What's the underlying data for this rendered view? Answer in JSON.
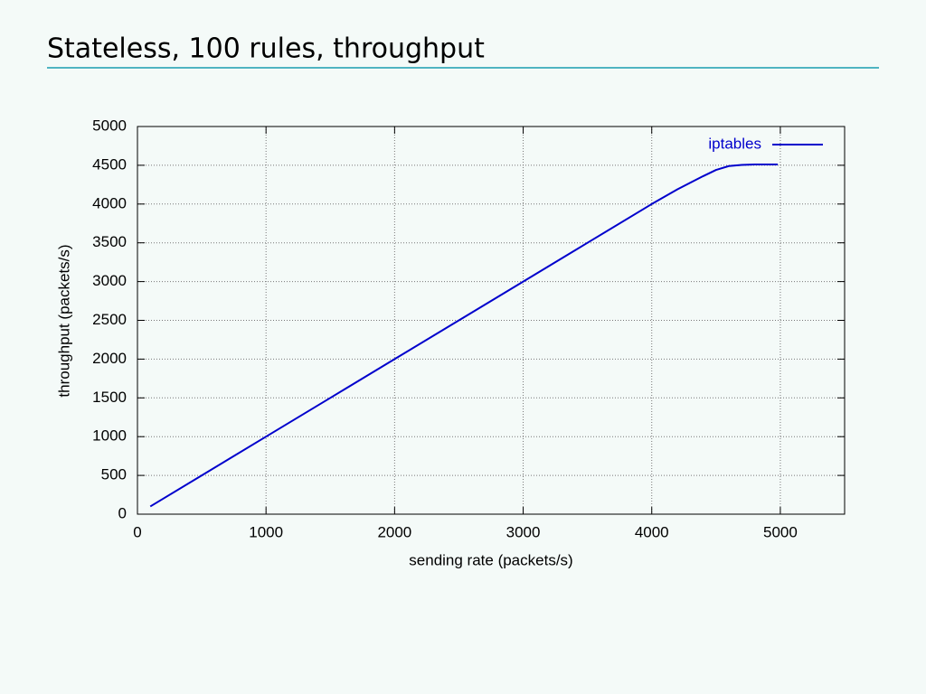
{
  "chart_data": {
    "type": "line",
    "title": "Stateless, 100 rules, throughput",
    "x_label": "sending rate (packets/s)",
    "y_label": "throughput (packets/s)",
    "x": [
      100,
      500,
      1000,
      1500,
      2000,
      2500,
      3000,
      3500,
      4000,
      4200,
      4400,
      4500,
      4600,
      4700,
      4800,
      4980
    ],
    "series": [
      {
        "name": "iptables",
        "color": "#0000cc",
        "values": [
          100,
          500,
          1000,
          1500,
          2000,
          2500,
          3000,
          3500,
          4000,
          4190,
          4360,
          4440,
          4490,
          4505,
          4510,
          4510
        ]
      }
    ],
    "xlim": [
      0,
      5500
    ],
    "xticks": [
      0,
      1000,
      2000,
      3000,
      4000,
      5000
    ],
    "ylim": [
      0,
      5000
    ],
    "yticks": [
      0,
      500,
      1000,
      1500,
      2000,
      2500,
      3000,
      3500,
      4000,
      4500,
      5000
    ],
    "grid": true,
    "legend": "upper right"
  }
}
